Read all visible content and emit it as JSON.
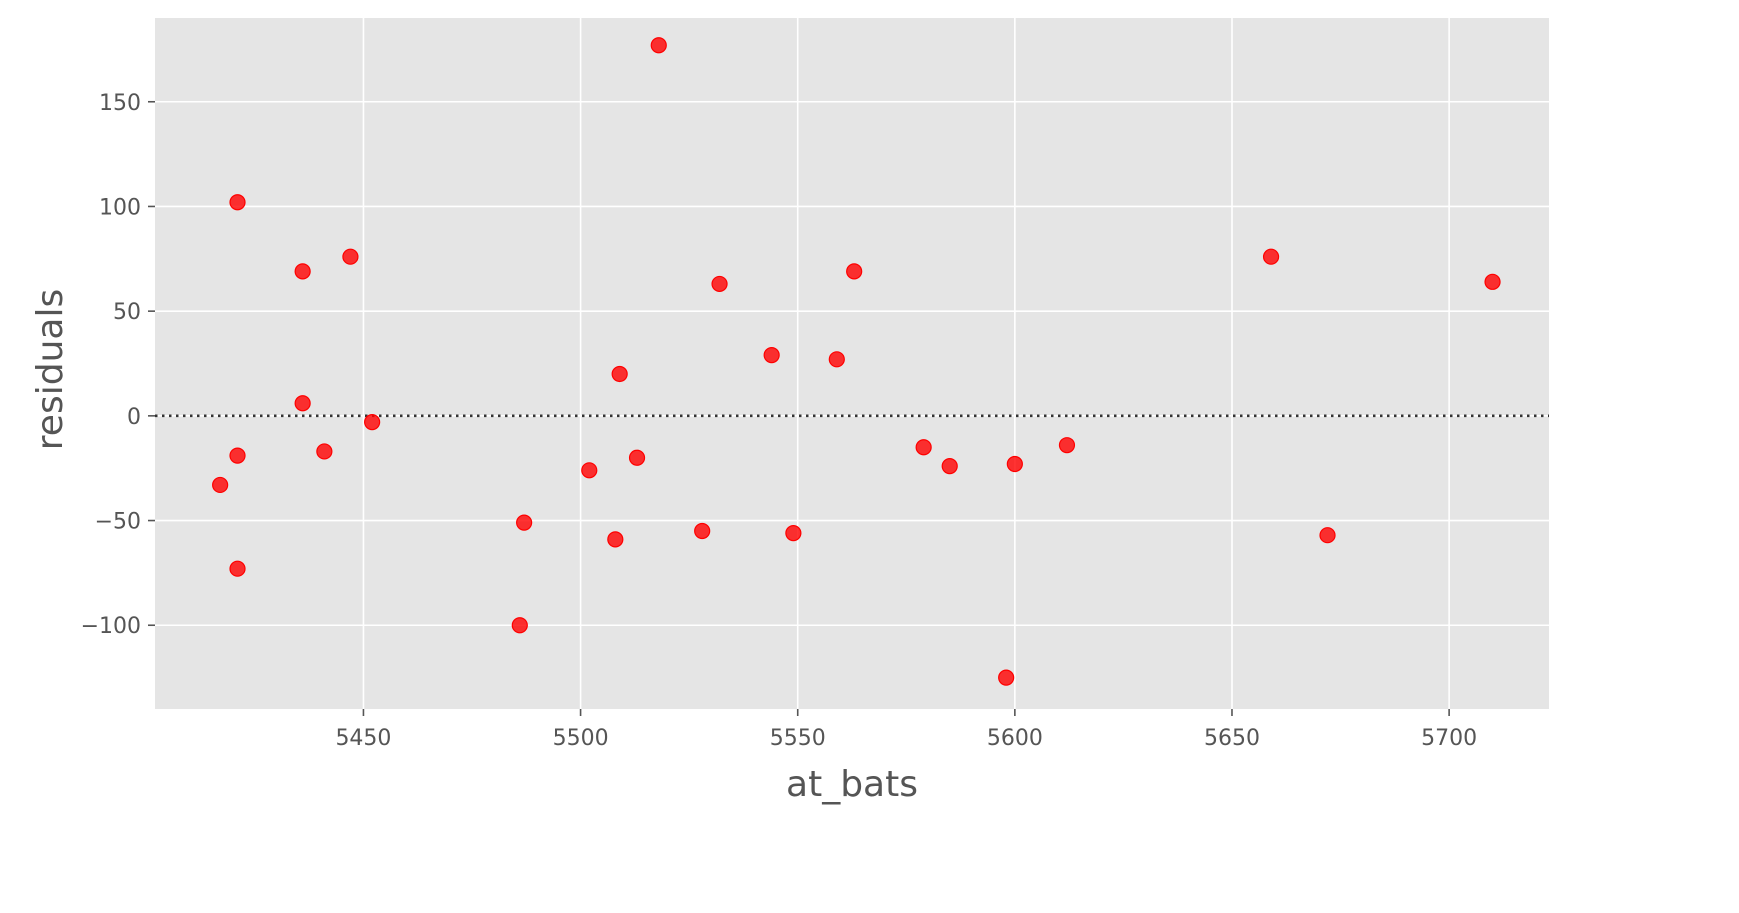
{
  "chart_data": {
    "type": "scatter",
    "title": "",
    "xlabel": "at_bats",
    "ylabel": "residuals",
    "xlim": [
      5402,
      5723
    ],
    "ylim": [
      -140,
      190
    ],
    "xticks": [
      5450,
      5500,
      5550,
      5600,
      5650,
      5700
    ],
    "yticks": [
      -100,
      -50,
      0,
      50,
      100,
      150
    ],
    "ytick_labels": [
      "−100",
      "−50",
      "0",
      "50",
      "100",
      "150"
    ],
    "grid": true,
    "reference_line": {
      "y": 0,
      "style": "dotted"
    },
    "colors": {
      "background": "#e5e5e5",
      "grid": "#ffffff",
      "point": "#ff0000",
      "reference_line": "#333333",
      "tick": "#555555"
    },
    "points": [
      {
        "x": 5417,
        "y": -33
      },
      {
        "x": 5421,
        "y": 102
      },
      {
        "x": 5421,
        "y": -19
      },
      {
        "x": 5421,
        "y": -73
      },
      {
        "x": 5436,
        "y": 69
      },
      {
        "x": 5436,
        "y": 6
      },
      {
        "x": 5441,
        "y": -17
      },
      {
        "x": 5447,
        "y": 76
      },
      {
        "x": 5452,
        "y": -3
      },
      {
        "x": 5486,
        "y": -100
      },
      {
        "x": 5487,
        "y": -51
      },
      {
        "x": 5502,
        "y": -26
      },
      {
        "x": 5508,
        "y": -59
      },
      {
        "x": 5509,
        "y": 20
      },
      {
        "x": 5513,
        "y": -20
      },
      {
        "x": 5518,
        "y": 177
      },
      {
        "x": 5528,
        "y": -55
      },
      {
        "x": 5532,
        "y": 63
      },
      {
        "x": 5544,
        "y": 29
      },
      {
        "x": 5549,
        "y": -56
      },
      {
        "x": 5559,
        "y": 27
      },
      {
        "x": 5563,
        "y": 69
      },
      {
        "x": 5579,
        "y": -15
      },
      {
        "x": 5585,
        "y": -24
      },
      {
        "x": 5598,
        "y": -125
      },
      {
        "x": 5600,
        "y": -23
      },
      {
        "x": 5612,
        "y": -14
      },
      {
        "x": 5659,
        "y": 76
      },
      {
        "x": 5672,
        "y": -57
      },
      {
        "x": 5710,
        "y": 64
      }
    ]
  }
}
